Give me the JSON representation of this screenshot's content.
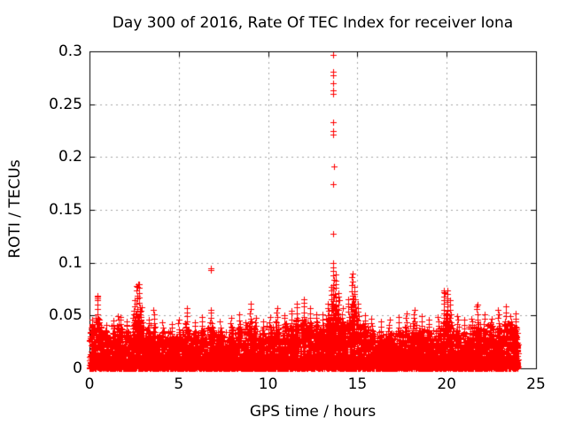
{
  "chart_data": {
    "type": "scatter",
    "title": "Day 300 of 2016, Rate Of TEC Index for receiver Iona",
    "xlabel": "GPS time / hours",
    "ylabel": "ROTI / TECUs",
    "xlim": [
      0,
      25
    ],
    "ylim": [
      0,
      0.3
    ],
    "grid": true,
    "legend": "none",
    "marker": "plus",
    "marker_color": "#ff0000",
    "grid_color": "#a6a6a6",
    "axis_color": "#000000",
    "background_color": "#ffffff",
    "x_ticks": [
      {
        "value": 0,
        "label": "0"
      },
      {
        "value": 5,
        "label": "5"
      },
      {
        "value": 10,
        "label": "10"
      },
      {
        "value": 15,
        "label": "15"
      },
      {
        "value": 20,
        "label": "20"
      },
      {
        "value": 25,
        "label": "25"
      }
    ],
    "y_ticks": [
      {
        "value": 0,
        "label": "0"
      },
      {
        "value": 0.05,
        "label": "0.05"
      },
      {
        "value": 0.1,
        "label": "0.1"
      },
      {
        "value": 0.15,
        "label": "0.15"
      },
      {
        "value": 0.2,
        "label": "0.2"
      },
      {
        "value": 0.25,
        "label": "0.25"
      },
      {
        "value": 0.3,
        "label": "0.3"
      }
    ],
    "data_x_range": [
      0,
      24
    ],
    "outliers": [
      [
        13.65,
        0.297
      ],
      [
        13.66,
        0.281
      ],
      [
        13.64,
        0.277
      ],
      [
        13.65,
        0.27
      ],
      [
        13.64,
        0.263
      ],
      [
        13.65,
        0.26
      ],
      [
        13.66,
        0.233
      ],
      [
        13.64,
        0.225
      ],
      [
        13.65,
        0.221
      ],
      [
        13.67,
        0.191
      ],
      [
        13.63,
        0.174
      ],
      [
        13.65,
        0.127
      ],
      [
        6.78,
        0.095
      ],
      [
        6.8,
        0.093
      ],
      [
        0.45,
        0.069
      ],
      [
        0.47,
        0.066
      ],
      [
        2.72,
        0.08
      ],
      [
        2.68,
        0.077
      ],
      [
        9.02,
        0.061
      ],
      [
        19.85,
        0.074
      ],
      [
        19.9,
        0.071
      ],
      [
        21.7,
        0.059
      ]
    ],
    "peaks": [
      [
        0.15,
        0.043
      ],
      [
        0.45,
        0.069
      ],
      [
        0.55,
        0.047
      ],
      [
        0.9,
        0.041
      ],
      [
        1.35,
        0.045
      ],
      [
        1.6,
        0.05
      ],
      [
        1.75,
        0.049
      ],
      [
        2.1,
        0.044
      ],
      [
        2.5,
        0.064
      ],
      [
        2.65,
        0.078
      ],
      [
        2.78,
        0.08
      ],
      [
        2.9,
        0.058
      ],
      [
        3.3,
        0.047
      ],
      [
        3.6,
        0.055
      ],
      [
        4.1,
        0.044
      ],
      [
        4.6,
        0.043
      ],
      [
        5.0,
        0.046
      ],
      [
        5.45,
        0.057
      ],
      [
        5.9,
        0.044
      ],
      [
        6.3,
        0.048
      ],
      [
        6.8,
        0.056
      ],
      [
        7.3,
        0.044
      ],
      [
        7.9,
        0.048
      ],
      [
        8.4,
        0.05
      ],
      [
        9.0,
        0.061
      ],
      [
        9.3,
        0.048
      ],
      [
        9.7,
        0.044
      ],
      [
        10.1,
        0.048
      ],
      [
        10.5,
        0.056
      ],
      [
        10.9,
        0.051
      ],
      [
        11.3,
        0.055
      ],
      [
        11.6,
        0.061
      ],
      [
        12.0,
        0.066
      ],
      [
        12.35,
        0.056
      ],
      [
        12.7,
        0.052
      ],
      [
        13.05,
        0.05
      ],
      [
        13.35,
        0.062
      ],
      [
        13.55,
        0.078
      ],
      [
        13.65,
        0.1
      ],
      [
        13.78,
        0.088
      ],
      [
        13.95,
        0.072
      ],
      [
        14.15,
        0.056
      ],
      [
        14.5,
        0.066
      ],
      [
        14.7,
        0.09
      ],
      [
        14.85,
        0.078
      ],
      [
        15.05,
        0.062
      ],
      [
        15.4,
        0.05
      ],
      [
        15.8,
        0.048
      ],
      [
        16.3,
        0.044
      ],
      [
        16.8,
        0.046
      ],
      [
        17.3,
        0.048
      ],
      [
        17.75,
        0.052
      ],
      [
        18.2,
        0.056
      ],
      [
        18.6,
        0.05
      ],
      [
        19.0,
        0.046
      ],
      [
        19.5,
        0.048
      ],
      [
        19.85,
        0.073
      ],
      [
        20.05,
        0.075
      ],
      [
        20.2,
        0.064
      ],
      [
        20.6,
        0.05
      ],
      [
        21.0,
        0.046
      ],
      [
        21.4,
        0.048
      ],
      [
        21.7,
        0.06
      ],
      [
        22.1,
        0.05
      ],
      [
        22.5,
        0.048
      ],
      [
        22.9,
        0.055
      ],
      [
        23.3,
        0.058
      ],
      [
        23.6,
        0.05
      ],
      [
        23.85,
        0.052
      ]
    ],
    "noise_envelope": [
      [
        0,
        0.036
      ],
      [
        0.5,
        0.04
      ],
      [
        1,
        0.03
      ],
      [
        1.5,
        0.034
      ],
      [
        2,
        0.032
      ],
      [
        2.5,
        0.038
      ],
      [
        3,
        0.036
      ],
      [
        3.5,
        0.032
      ],
      [
        4,
        0.028
      ],
      [
        4.5,
        0.03
      ],
      [
        5,
        0.03
      ],
      [
        5.5,
        0.034
      ],
      [
        6,
        0.03
      ],
      [
        6.5,
        0.032
      ],
      [
        7,
        0.03
      ],
      [
        7.5,
        0.028
      ],
      [
        8,
        0.032
      ],
      [
        8.5,
        0.034
      ],
      [
        9,
        0.036
      ],
      [
        9.5,
        0.03
      ],
      [
        10,
        0.032
      ],
      [
        10.5,
        0.036
      ],
      [
        11,
        0.034
      ],
      [
        11.5,
        0.036
      ],
      [
        12,
        0.038
      ],
      [
        12.5,
        0.036
      ],
      [
        13,
        0.036
      ],
      [
        13.5,
        0.04
      ],
      [
        14,
        0.04
      ],
      [
        14.5,
        0.038
      ],
      [
        15,
        0.038
      ],
      [
        15.5,
        0.034
      ],
      [
        16,
        0.03
      ],
      [
        16.5,
        0.028
      ],
      [
        17,
        0.028
      ],
      [
        17.5,
        0.03
      ],
      [
        18,
        0.032
      ],
      [
        18.5,
        0.032
      ],
      [
        19,
        0.03
      ],
      [
        19.5,
        0.032
      ],
      [
        20,
        0.036
      ],
      [
        20.5,
        0.032
      ],
      [
        21,
        0.03
      ],
      [
        21.5,
        0.032
      ],
      [
        22,
        0.034
      ],
      [
        22.5,
        0.034
      ],
      [
        23,
        0.036
      ],
      [
        23.5,
        0.038
      ],
      [
        24,
        0.036
      ]
    ],
    "noise": {
      "seed": 12345,
      "floor_count": 6500,
      "strip_count": 2600
    }
  }
}
